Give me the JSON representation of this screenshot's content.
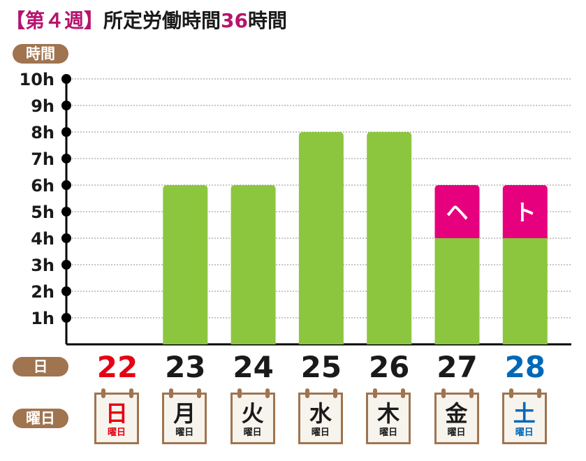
{
  "title": {
    "week": "【第４週】",
    "main": "所定労働時間",
    "hours": "36",
    "unit": "時間"
  },
  "row_labels": {
    "unit": "時間",
    "day": "日",
    "weekday": "曜日"
  },
  "colors": {
    "work": "#8cc63f",
    "extra": "#e6007e",
    "accent": "#b5146e",
    "label_bg": "#a0744f",
    "sunday": "#e60012",
    "saturday": "#0068b7",
    "weekday": "#1a1a1a"
  },
  "chart_data": {
    "type": "bar",
    "stacked": true,
    "categories": [
      "22",
      "23",
      "24",
      "25",
      "26",
      "27",
      "28"
    ],
    "weekdays": [
      "日",
      "月",
      "火",
      "水",
      "木",
      "金",
      "土"
    ],
    "weekday_suffix": "曜日",
    "day_colors": [
      "sunday",
      "weekday",
      "weekday",
      "weekday",
      "weekday",
      "weekday",
      "saturday"
    ],
    "y_ticks": [
      "1h",
      "2h",
      "3h",
      "4h",
      "5h",
      "6h",
      "7h",
      "8h",
      "9h",
      "10h"
    ],
    "ylim": [
      0,
      10
    ],
    "grid": true,
    "series": [
      {
        "color": "work",
        "values": [
          0,
          6,
          6,
          8,
          8,
          4,
          4
        ]
      },
      {
        "color": "extra",
        "values": [
          0,
          0,
          0,
          0,
          0,
          2,
          2
        ]
      }
    ],
    "segment_labels": [
      {
        "index": 5,
        "series": 1,
        "label": "ヘ"
      },
      {
        "index": 6,
        "series": 1,
        "label": "ト"
      }
    ]
  }
}
